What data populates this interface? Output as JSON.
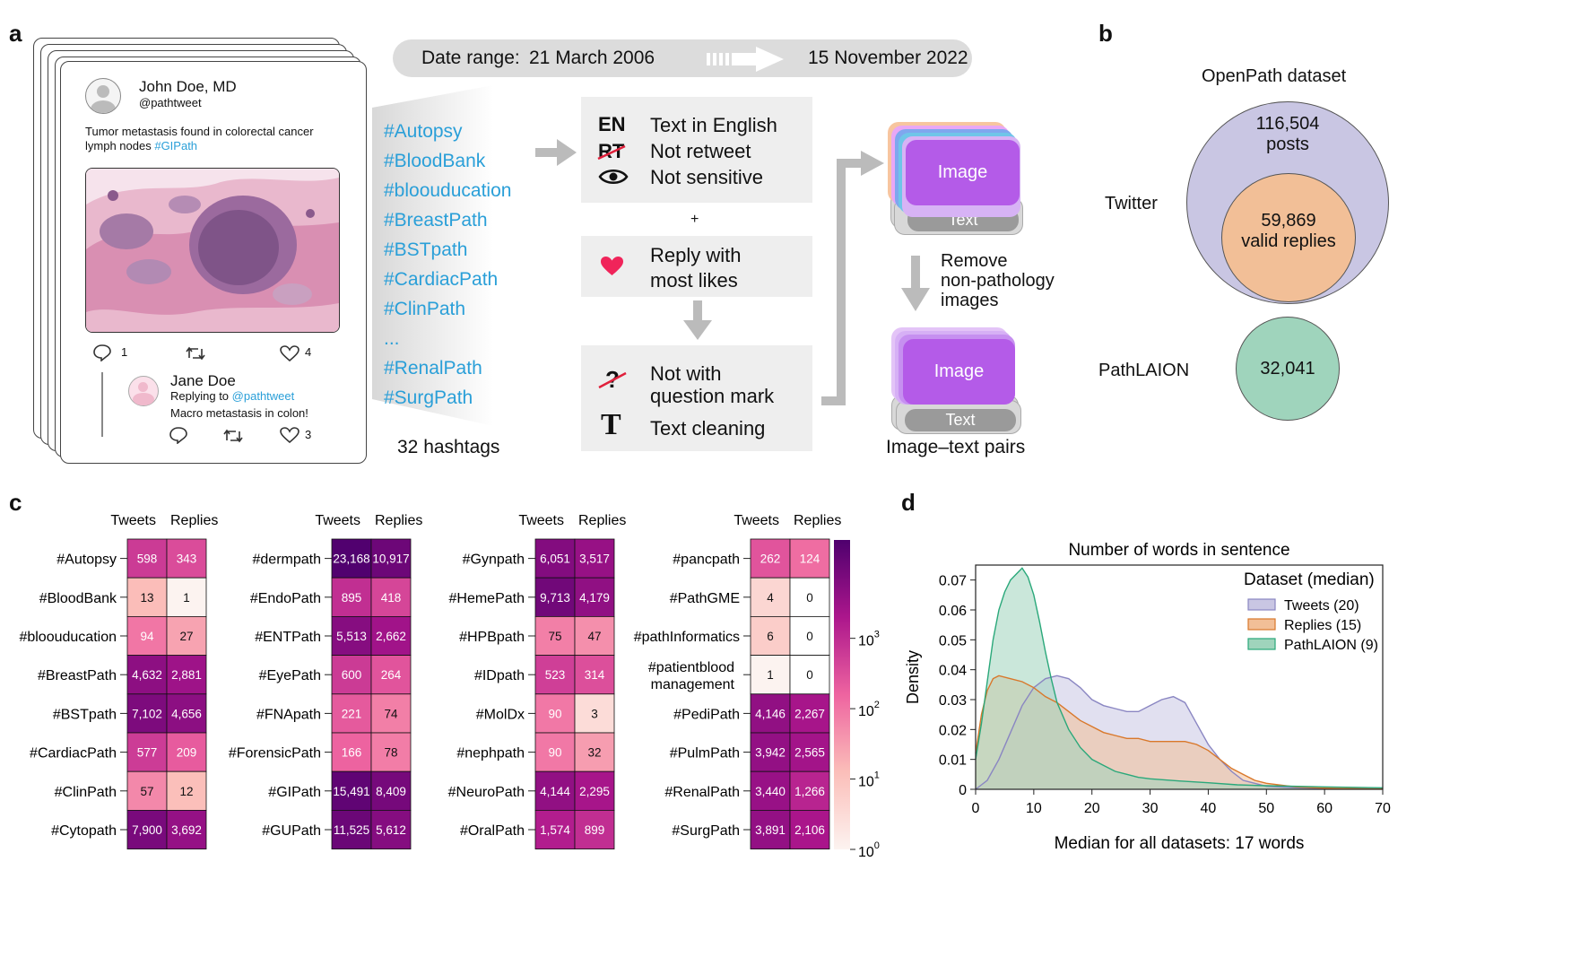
{
  "panel_labels": {
    "a": "a",
    "b": "b",
    "c": "c",
    "d": "d"
  },
  "tweet": {
    "author": "John Doe, MD",
    "handle": "@pathtweet",
    "text_line1": "Tumor metastasis found in colorectal cancer",
    "text_line2": "lymph nodes",
    "text_tag": "#GIPath",
    "reply_count": "1",
    "like_count": "4",
    "reply": {
      "author": "Jane Doe",
      "replying_prefix": "Replying to",
      "replying_handle": "@pathtweet",
      "text": "Macro metastasis in colon!",
      "like_count": "3"
    }
  },
  "date_range": {
    "label": "Date range:",
    "start": "21 March 2006",
    "end": "15 November 2022"
  },
  "hashtags": [
    "#Autopsy",
    "#BloodBank",
    "#bloouducation",
    "#BreastPath",
    "#BSTpath",
    "#CardiacPath",
    "#ClinPath",
    "...",
    "#RenalPath",
    "#SurgPath"
  ],
  "hashtag_count": "32 hashtags",
  "filters": {
    "en_code": "EN",
    "en_text": "Text in English",
    "rt_code": "RT",
    "rt_text": "Not retweet",
    "sensitive_text": "Not sensitive",
    "plus": "+",
    "likes_line1": "Reply with",
    "likes_line2": "most likes",
    "question_line1": "Not with",
    "question_line2": "question mark",
    "clean_code": "T",
    "clean_text": "Text cleaning"
  },
  "pairs": {
    "image": "Image",
    "text": "Text",
    "remove_line1": "Remove",
    "remove_line2": "non-pathology",
    "remove_line3": "images",
    "caption": "Image–text pairs"
  },
  "panel_b": {
    "title": "OpenPath dataset",
    "twitter_label": "Twitter",
    "posts_value": "116,504",
    "posts_label": "posts",
    "replies_value": "59,869",
    "replies_label": "valid replies",
    "laion_label": "PathLAION",
    "laion_value": "32,041",
    "colors": {
      "posts": "#c9c6e3",
      "replies": "#f2bf97",
      "laion": "#9fd4bc"
    }
  },
  "panel_c": {
    "col_tweets": "Tweets",
    "col_replies": "Replies",
    "groups": [
      [
        [
          "#Autopsy",
          "598",
          "343"
        ],
        [
          "#BloodBank",
          "13",
          "1"
        ],
        [
          "#bloouducation",
          "94",
          "27"
        ],
        [
          "#BreastPath",
          "4,632",
          "2,881"
        ],
        [
          "#BSTpath",
          "7,102",
          "4,656"
        ],
        [
          "#CardiacPath",
          "577",
          "209"
        ],
        [
          "#ClinPath",
          "57",
          "12"
        ],
        [
          "#Cytopath",
          "7,900",
          "3,692"
        ]
      ],
      [
        [
          "#dermpath",
          "23,168",
          "10,917"
        ],
        [
          "#EndoPath",
          "895",
          "418"
        ],
        [
          "#ENTPath",
          "5,513",
          "2,662"
        ],
        [
          "#EyePath",
          "600",
          "264"
        ],
        [
          "#FNApath",
          "221",
          "74"
        ],
        [
          "#ForensicPath",
          "166",
          "78"
        ],
        [
          "#GIPath",
          "15,491",
          "8,409"
        ],
        [
          "#GUPath",
          "11,525",
          "5,612"
        ]
      ],
      [
        [
          "#Gynpath",
          "6,051",
          "3,517"
        ],
        [
          "#HemePath",
          "9,713",
          "4,179"
        ],
        [
          "#HPBpath",
          "75",
          "47"
        ],
        [
          "#IDpath",
          "523",
          "314"
        ],
        [
          "#MolDx",
          "90",
          "3"
        ],
        [
          "#nephpath",
          "90",
          "32"
        ],
        [
          "#NeuroPath",
          "4,144",
          "2,295"
        ],
        [
          "#OralPath",
          "1,574",
          "899"
        ]
      ],
      [
        [
          "#pancpath",
          "262",
          "124"
        ],
        [
          "#PathGME",
          "4",
          "0"
        ],
        [
          "#pathInformatics",
          "6",
          "0"
        ],
        [
          "#patientblood management",
          "1",
          "0"
        ],
        [
          "#PediPath",
          "4,146",
          "2,267"
        ],
        [
          "#PulmPath",
          "3,942",
          "2,565"
        ],
        [
          "#RenalPath",
          "3,440",
          "1,266"
        ],
        [
          "#SurgPath",
          "3,891",
          "2,106"
        ]
      ]
    ],
    "colorbar": {
      "ticks": [
        {
          "base": "10",
          "exp": "3",
          "v": 1000
        },
        {
          "base": "10",
          "exp": "2",
          "v": 100
        },
        {
          "base": "10",
          "exp": "1",
          "v": 10
        },
        {
          "base": "10",
          "exp": "0",
          "v": 1
        }
      ]
    }
  },
  "chart_data": {
    "type": "area",
    "title": "Number of words in sentence",
    "xlabel": "Median for all datasets: 17 words",
    "ylabel": "Density",
    "xlim": [
      0,
      70
    ],
    "ylim": [
      0,
      0.075
    ],
    "xticks": [
      0,
      10,
      20,
      30,
      40,
      50,
      60,
      70
    ],
    "yticks": [
      0,
      0.01,
      0.02,
      0.03,
      0.04,
      0.05,
      0.06,
      0.07
    ],
    "ytick_labels": [
      "0",
      "0.01",
      "0.02",
      "0.03",
      "0.04",
      "0.05",
      "0.06",
      "0.07"
    ],
    "legend_title": "Dataset (median)",
    "legend_position": "top-right",
    "series": [
      {
        "name": "Tweets (20)",
        "color": "#8a86c2",
        "fill": "#c9c6e3",
        "x": [
          0,
          2,
          4,
          6,
          8,
          10,
          12,
          14,
          16,
          18,
          20,
          22,
          24,
          26,
          28,
          30,
          32,
          34,
          36,
          38,
          40,
          42,
          44,
          46,
          48,
          50,
          55,
          60,
          65,
          70
        ],
        "y": [
          0,
          0.003,
          0.01,
          0.019,
          0.028,
          0.034,
          0.037,
          0.038,
          0.037,
          0.034,
          0.03,
          0.028,
          0.027,
          0.026,
          0.026,
          0.028,
          0.03,
          0.031,
          0.029,
          0.022,
          0.015,
          0.01,
          0.006,
          0.003,
          0.002,
          0.001,
          0.0005,
          0.0003,
          0.0002,
          0.0001
        ]
      },
      {
        "name": "Replies (15)",
        "color": "#d9782b",
        "fill": "#f2bf97",
        "x": [
          0,
          1,
          2,
          3,
          4,
          6,
          8,
          10,
          12,
          14,
          16,
          18,
          20,
          22,
          24,
          26,
          28,
          30,
          32,
          34,
          36,
          38,
          40,
          42,
          44,
          46,
          48,
          50,
          55,
          60,
          65,
          70
        ],
        "y": [
          0.012,
          0.025,
          0.033,
          0.037,
          0.038,
          0.037,
          0.036,
          0.034,
          0.031,
          0.029,
          0.026,
          0.023,
          0.021,
          0.019,
          0.018,
          0.017,
          0.017,
          0.016,
          0.016,
          0.016,
          0.016,
          0.015,
          0.013,
          0.01,
          0.007,
          0.005,
          0.003,
          0.002,
          0.0008,
          0.0004,
          0.0002,
          0.0001
        ]
      },
      {
        "name": "PathLAION (9)",
        "color": "#2aa87a",
        "fill": "#9fd4bc",
        "x": [
          0,
          1,
          2,
          3,
          4,
          5,
          6,
          7,
          8,
          9,
          10,
          11,
          12,
          13,
          14,
          16,
          18,
          20,
          22,
          24,
          26,
          28,
          30,
          35,
          40,
          45,
          50,
          60,
          70
        ],
        "y": [
          0.01,
          0.022,
          0.036,
          0.05,
          0.06,
          0.066,
          0.07,
          0.072,
          0.074,
          0.071,
          0.065,
          0.056,
          0.046,
          0.037,
          0.029,
          0.02,
          0.014,
          0.01,
          0.008,
          0.006,
          0.005,
          0.004,
          0.0035,
          0.0028,
          0.0022,
          0.0015,
          0.0012,
          0.0008,
          0.0005
        ]
      }
    ]
  }
}
